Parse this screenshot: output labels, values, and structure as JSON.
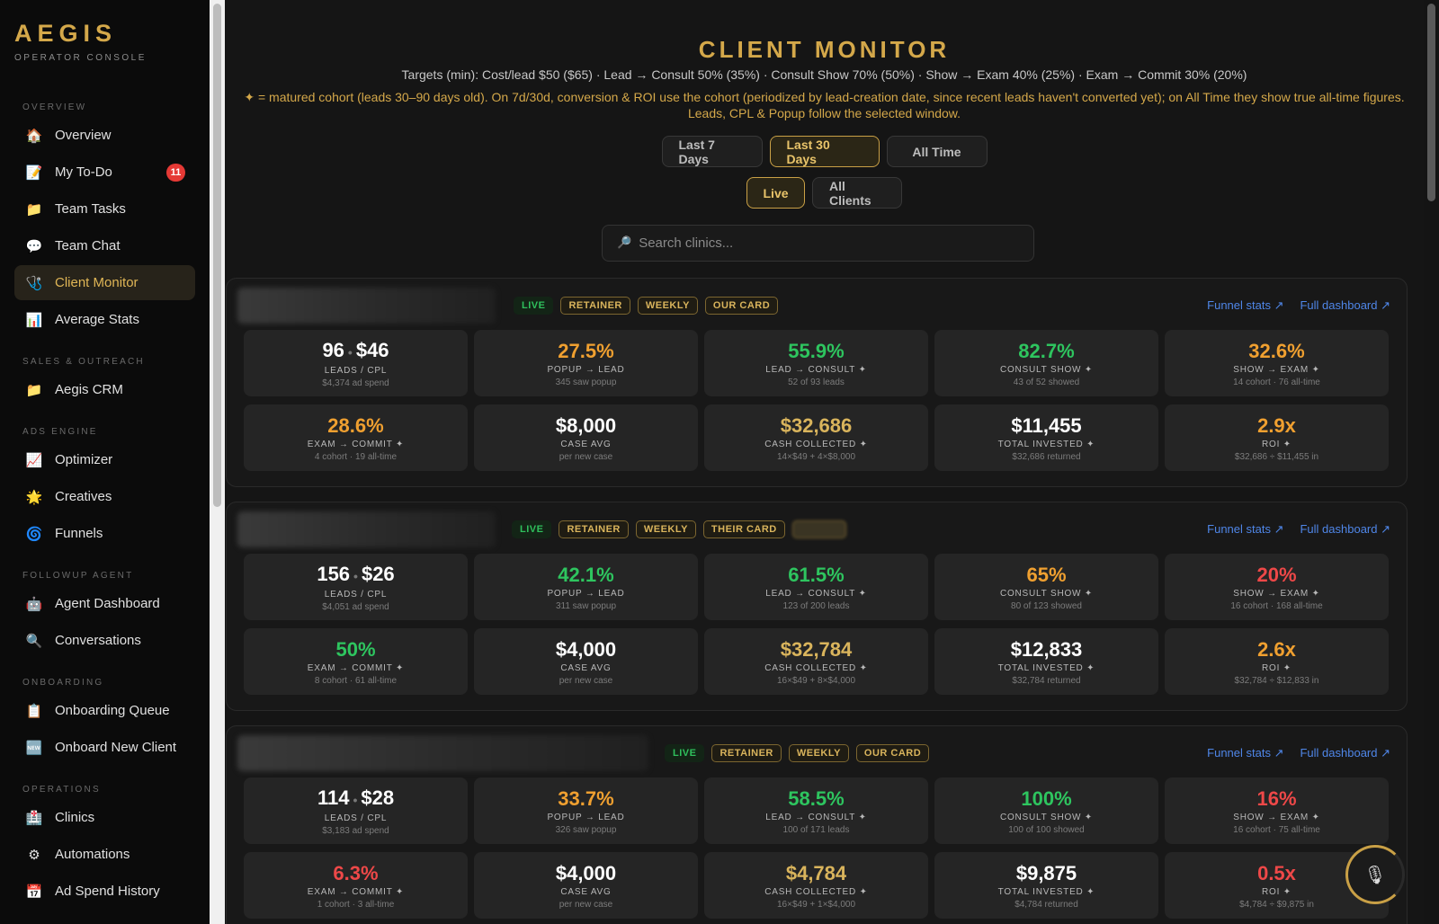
{
  "brand": {
    "name": "AEGIS",
    "subtitle": "OPERATOR CONSOLE"
  },
  "sidebar": {
    "sections": [
      {
        "label": "OVERVIEW",
        "items": [
          {
            "label": "Overview",
            "icon": "🏠"
          },
          {
            "label": "My To-Do",
            "icon": "📝",
            "badge": "11"
          },
          {
            "label": "Team Tasks",
            "icon": "📁"
          },
          {
            "label": "Team Chat",
            "icon": "💬"
          },
          {
            "label": "Client Monitor",
            "icon": "🩺",
            "active": true
          },
          {
            "label": "Average Stats",
            "icon": "📊"
          }
        ]
      },
      {
        "label": "SALES & OUTREACH",
        "items": [
          {
            "label": "Aegis CRM",
            "icon": "📁"
          }
        ]
      },
      {
        "label": "ADS ENGINE",
        "items": [
          {
            "label": "Optimizer",
            "icon": "📈"
          },
          {
            "label": "Creatives",
            "icon": "🌟"
          },
          {
            "label": "Funnels",
            "icon": "🌀"
          }
        ]
      },
      {
        "label": "FOLLOWUP AGENT",
        "items": [
          {
            "label": "Agent Dashboard",
            "icon": "🤖"
          },
          {
            "label": "Conversations",
            "icon": "🔍"
          }
        ]
      },
      {
        "label": "ONBOARDING",
        "items": [
          {
            "label": "Onboarding Queue",
            "icon": "📋"
          },
          {
            "label": "Onboard New Client",
            "icon": "🆕"
          }
        ]
      },
      {
        "label": "OPERATIONS",
        "items": [
          {
            "label": "Clinics",
            "icon": "🏥"
          },
          {
            "label": "Automations",
            "icon": "⚙"
          },
          {
            "label": "Ad Spend History",
            "icon": "📅"
          }
        ]
      }
    ]
  },
  "header": {
    "title": "CLIENT MONITOR",
    "targets": "Targets (min): Cost/lead $50 ($65) · Lead → Consult 50% (35%) · Consult Show 70% (50%) · Show → Exam 40% (25%) · Exam → Commit 30% (20%)",
    "note": "✦ = matured cohort (leads 30–90 days old). On 7d/30d, conversion & ROI use the cohort (periodized by lead-creation date, since recent leads haven't converted yet); on All Time they show true all-time figures. Leads, CPL & Popup follow the selected window."
  },
  "filters": {
    "range": [
      {
        "label": "Last 7 Days",
        "active": false
      },
      {
        "label": "Last 30 Days",
        "active": true
      },
      {
        "label": "All Time",
        "active": false
      }
    ],
    "status": [
      {
        "label": "Live",
        "active": true
      },
      {
        "label": "All Clients",
        "active": false
      }
    ]
  },
  "search": {
    "placeholder": "Search clinics...",
    "value": "",
    "icon": "search-icon"
  },
  "links": {
    "funnel": "Funnel stats ↗",
    "dashboard": "Full dashboard ↗"
  },
  "colors": {
    "accent": "#d4a84a",
    "green": "#2ec55f",
    "orange": "#f0a030",
    "red": "#ee4848",
    "link": "#4f86e8"
  },
  "clients": [
    {
      "badges": [
        "LIVE",
        "RETAINER",
        "WEEKLY",
        "OUR CARD"
      ],
      "stats": [
        {
          "leads": "96",
          "cpl": "$46",
          "label": "LEADS / CPL",
          "sub": "$4,374 ad spend",
          "color": "white"
        },
        {
          "value": "27.5%",
          "label": "POPUP → LEAD",
          "sub": "345 saw popup",
          "color": "orange"
        },
        {
          "value": "55.9%",
          "label": "LEAD → CONSULT ✦",
          "sub": "52 of 93 leads",
          "color": "green"
        },
        {
          "value": "82.7%",
          "label": "CONSULT SHOW ✦",
          "sub": "43 of 52 showed",
          "color": "green"
        },
        {
          "value": "32.6%",
          "label": "SHOW → EXAM ✦",
          "sub": "14 cohort · 76 all-time",
          "color": "orange"
        },
        {
          "value": "28.6%",
          "label": "EXAM → COMMIT ✦",
          "sub": "4 cohort · 19 all-time",
          "color": "orange"
        },
        {
          "value": "$8,000",
          "label": "CASE AVG",
          "sub": "per new case",
          "color": "white"
        },
        {
          "value": "$32,686",
          "label": "CASH COLLECTED ✦",
          "sub": "14×$49 + 4×$8,000",
          "color": "gold"
        },
        {
          "value": "$11,455",
          "label": "TOTAL INVESTED ✦",
          "sub": "$32,686 returned",
          "color": "white"
        },
        {
          "value": "2.9x",
          "label": "ROI ✦",
          "sub": "$32,686 ÷ $11,455 in",
          "color": "orange"
        }
      ]
    },
    {
      "badges": [
        "LIVE",
        "RETAINER",
        "WEEKLY",
        "THEIR CARD"
      ],
      "stats": [
        {
          "leads": "156",
          "cpl": "$26",
          "label": "LEADS / CPL",
          "sub": "$4,051 ad spend",
          "color": "white"
        },
        {
          "value": "42.1%",
          "label": "POPUP → LEAD",
          "sub": "311 saw popup",
          "color": "green"
        },
        {
          "value": "61.5%",
          "label": "LEAD → CONSULT ✦",
          "sub": "123 of 200 leads",
          "color": "green"
        },
        {
          "value": "65%",
          "label": "CONSULT SHOW ✦",
          "sub": "80 of 123 showed",
          "color": "orange"
        },
        {
          "value": "20%",
          "label": "SHOW → EXAM ✦",
          "sub": "16 cohort · 168 all-time",
          "color": "red"
        },
        {
          "value": "50%",
          "label": "EXAM → COMMIT ✦",
          "sub": "8 cohort · 61 all-time",
          "color": "green"
        },
        {
          "value": "$4,000",
          "label": "CASE AVG",
          "sub": "per new case",
          "color": "white"
        },
        {
          "value": "$32,784",
          "label": "CASH COLLECTED ✦",
          "sub": "16×$49 + 8×$4,000",
          "color": "gold"
        },
        {
          "value": "$12,833",
          "label": "TOTAL INVESTED ✦",
          "sub": "$32,784 returned",
          "color": "white"
        },
        {
          "value": "2.6x",
          "label": "ROI ✦",
          "sub": "$32,784 ÷ $12,833 in",
          "color": "orange"
        }
      ]
    },
    {
      "badges": [
        "LIVE",
        "RETAINER",
        "WEEKLY",
        "OUR CARD"
      ],
      "stats": [
        {
          "leads": "114",
          "cpl": "$28",
          "label": "LEADS / CPL",
          "sub": "$3,183 ad spend",
          "color": "white"
        },
        {
          "value": "33.7%",
          "label": "POPUP → LEAD",
          "sub": "326 saw popup",
          "color": "orange"
        },
        {
          "value": "58.5%",
          "label": "LEAD → CONSULT ✦",
          "sub": "100 of 171 leads",
          "color": "green"
        },
        {
          "value": "100%",
          "label": "CONSULT SHOW ✦",
          "sub": "100 of 100 showed",
          "color": "green"
        },
        {
          "value": "16%",
          "label": "SHOW → EXAM ✦",
          "sub": "16 cohort · 75 all-time",
          "color": "red"
        },
        {
          "value": "6.3%",
          "label": "EXAM → COMMIT ✦",
          "sub": "1 cohort · 3 all-time",
          "color": "red"
        },
        {
          "value": "$4,000",
          "label": "CASE AVG",
          "sub": "per new case",
          "color": "white"
        },
        {
          "value": "$4,784",
          "label": "CASH COLLECTED ✦",
          "sub": "16×$49 + 1×$4,000",
          "color": "gold"
        },
        {
          "value": "$9,875",
          "label": "TOTAL INVESTED ✦",
          "sub": "$4,784 returned",
          "color": "white"
        },
        {
          "value": "0.5x",
          "label": "ROI ✦",
          "sub": "$4,784 ÷ $9,875 in",
          "color": "red"
        }
      ]
    }
  ],
  "fab": {
    "icon": "microphone-icon",
    "glyph": "🎙"
  }
}
